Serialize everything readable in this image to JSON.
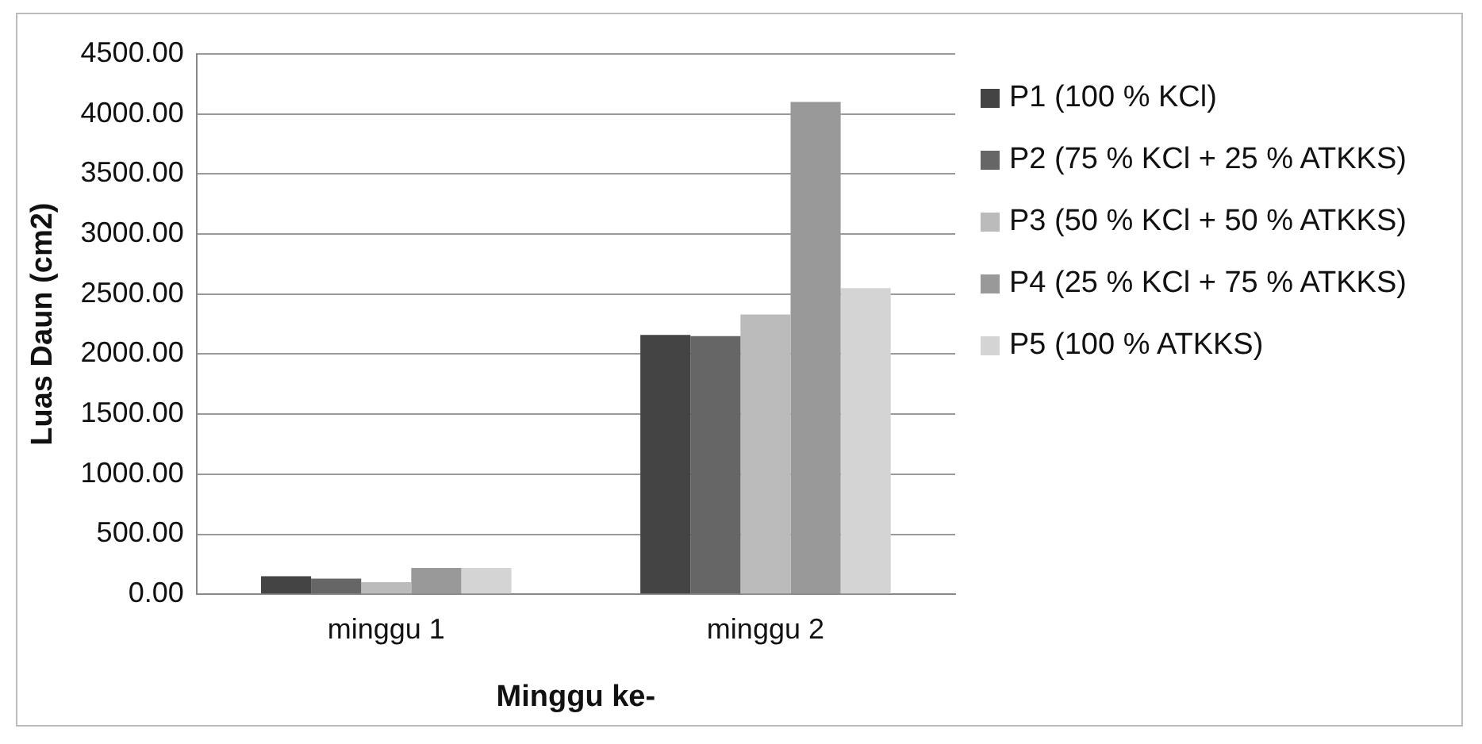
{
  "chart_data": {
    "type": "bar",
    "xlabel": "Minggu ke-",
    "ylabel": "Luas Daun (cm2)",
    "categories": [
      "minggu 1",
      "minggu 2"
    ],
    "series": [
      {
        "name": "P1 (100 % KCl)",
        "color": "#444444",
        "values": [
          150,
          2160
        ]
      },
      {
        "name": "P2 (75 % KCl + 25 % ATKKS)",
        "color": "#666666",
        "values": [
          130,
          2150
        ]
      },
      {
        "name": "P3 (50 % KCl + 50 % ATKKS)",
        "color": "#bbbbbb",
        "values": [
          100,
          2330
        ]
      },
      {
        "name": "P4 (25 % KCl + 75 % ATKKS)",
        "color": "#999999",
        "values": [
          220,
          4100
        ]
      },
      {
        "name": "P5 (100 % ATKKS)",
        "color": "#d4d4d4",
        "values": [
          220,
          2550
        ]
      }
    ],
    "ylim": [
      0,
      4500
    ],
    "yticks": [
      {
        "value": 0,
        "label": "0.00"
      },
      {
        "value": 500,
        "label": "500.00"
      },
      {
        "value": 1000,
        "label": "1000.00"
      },
      {
        "value": 1500,
        "label": "1500.00"
      },
      {
        "value": 2000,
        "label": "2000.00"
      },
      {
        "value": 2500,
        "label": "2500.00"
      },
      {
        "value": 3000,
        "label": "3000.00"
      },
      {
        "value": 3500,
        "label": "3500.00"
      },
      {
        "value": 4000,
        "label": "4000.00"
      },
      {
        "value": 4500,
        "label": "4500.00"
      }
    ],
    "grid": "y",
    "legend": "right"
  }
}
